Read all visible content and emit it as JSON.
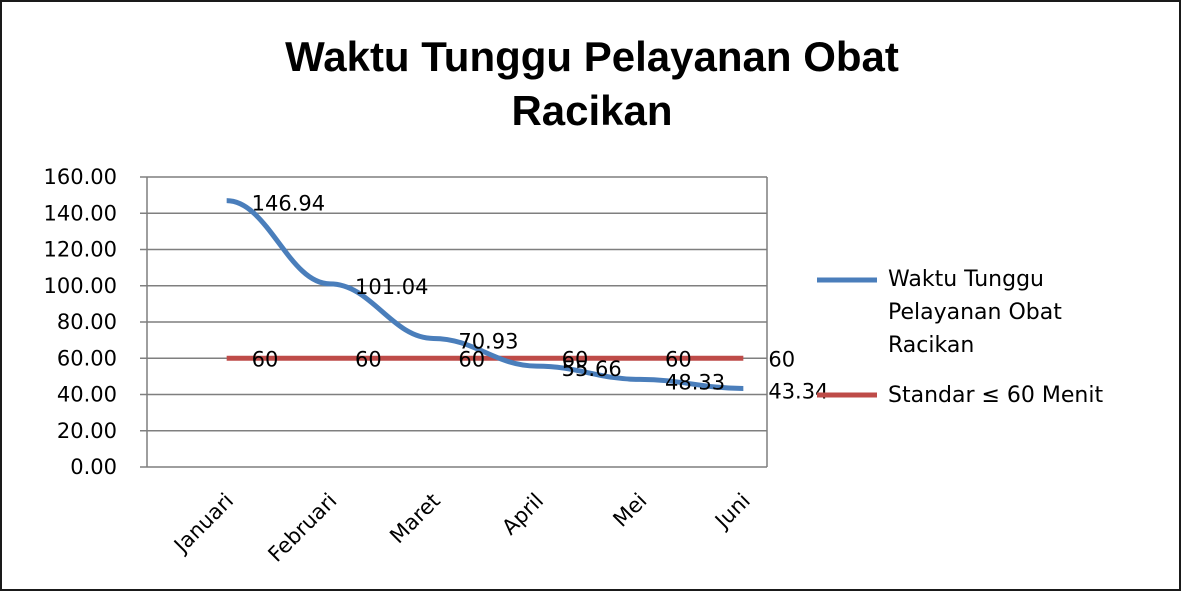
{
  "chart_data": {
    "type": "line",
    "title_lines": [
      "Waktu Tunggu Pelayanan Obat",
      "Racikan"
    ],
    "categories": [
      "Januari",
      "Februari",
      "Maret",
      "April",
      "Mei",
      "Juni"
    ],
    "series": [
      {
        "name_lines": [
          "Waktu Tunggu",
          "Pelayanan Obat",
          "Racikan"
        ],
        "values": [
          146.94,
          101.04,
          70.93,
          55.66,
          48.33,
          43.34
        ],
        "labels": [
          "146.94",
          "101.04",
          "70.93",
          "55.66",
          "48.33",
          "43.34"
        ],
        "color": "#4a7ebb"
      },
      {
        "name_lines": [
          "Standar  ≤ 60 Menit"
        ],
        "values": [
          60,
          60,
          60,
          60,
          60,
          60
        ],
        "labels": [
          "60",
          "60",
          "60",
          "60",
          "60",
          "60"
        ],
        "color": "#be4b48"
      }
    ],
    "yticks": [
      "0.00",
      "20.00",
      "40.00",
      "60.00",
      "80.00",
      "100.00",
      "120.00",
      "140.00",
      "160.00"
    ],
    "ylim": [
      0,
      160
    ],
    "grid": true,
    "legend_position": "right"
  }
}
